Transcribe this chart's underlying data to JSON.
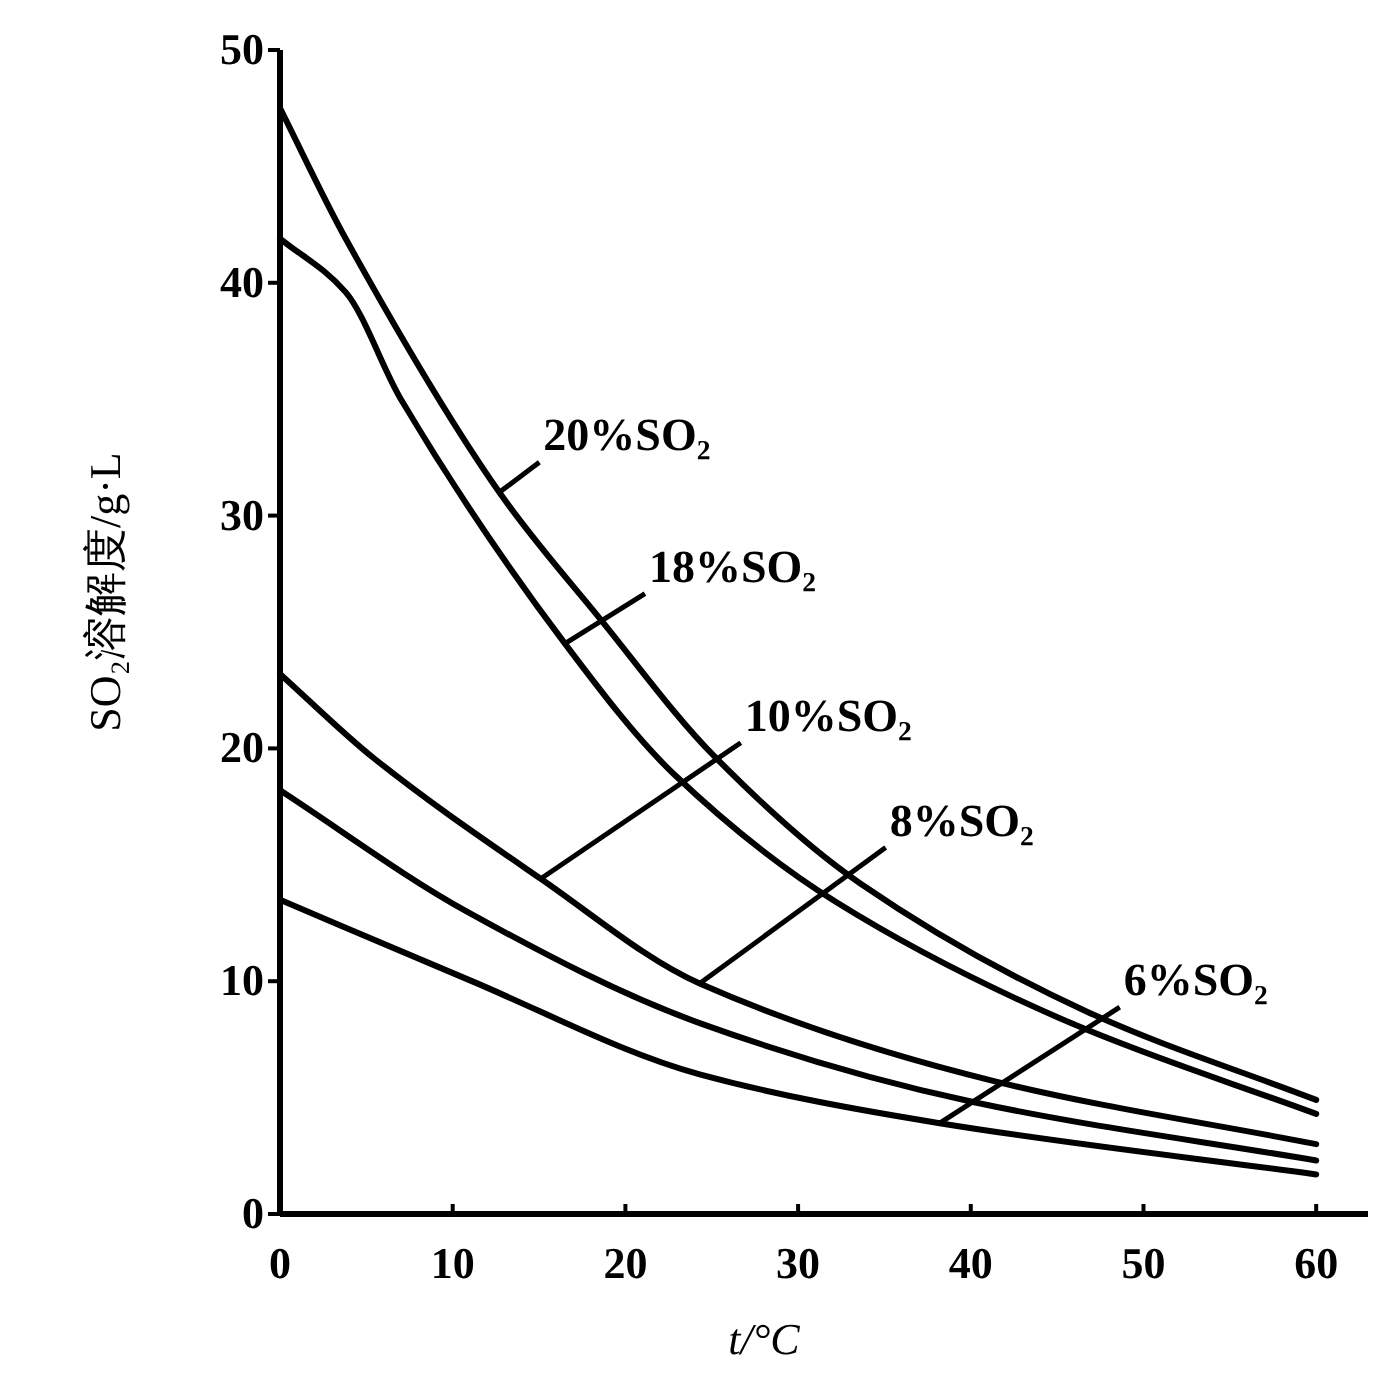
{
  "chart_data": {
    "type": "line",
    "xlabel": "t/°C",
    "ylabel": "SO₂溶解度/g·L",
    "xlim": [
      0,
      63
    ],
    "ylim": [
      0,
      50
    ],
    "xticks": [
      0,
      10,
      20,
      30,
      40,
      50,
      60
    ],
    "yticks": [
      0,
      10,
      20,
      30,
      40,
      50
    ],
    "grid": false,
    "marker": "none",
    "line_style": "solid",
    "series": [
      {
        "color": "#000000",
        "x": [
          0,
          3.8,
          12.7,
          18.5,
          25.1,
          33.6,
          46.7,
          60
        ],
        "values": [
          47.5,
          41.9,
          31.0,
          25.6,
          19.7,
          14.2,
          8.7,
          4.9
        ]
      },
      {
        "color": "#000000",
        "x": [
          0,
          3.8,
          7,
          16.5,
          22.8,
          32.2,
          45.8,
          60
        ],
        "values": [
          41.9,
          39.6,
          35.0,
          24.5,
          18.9,
          13.4,
          8.2,
          4.3
        ]
      },
      {
        "color": "#000000",
        "x": [
          0,
          5.4,
          15.1,
          24.3,
          41.4,
          60
        ],
        "values": [
          23.2,
          19.6,
          14.4,
          9.9,
          5.7,
          3.0
        ]
      },
      {
        "color": "#000000",
        "x": [
          0,
          10.8,
          24.3,
          40.2,
          60
        ],
        "values": [
          18.2,
          13.0,
          8.2,
          4.8,
          2.3
        ]
      },
      {
        "color": "#000000",
        "x": [
          0,
          10.8,
          24.3,
          38.2,
          60
        ],
        "values": [
          13.5,
          10.1,
          6.0,
          3.9,
          1.7
        ]
      }
    ],
    "annotations": [
      {
        "text": "20%SO₂",
        "x": 12.7,
        "y": 31.0
      },
      {
        "text": "18%SO₂",
        "x": 16.5,
        "y": 24.5
      },
      {
        "text": "10%SO₂",
        "x": 15.1,
        "y": 14.4
      },
      {
        "text": "8%SO₂",
        "x": 24.3,
        "y": 9.9
      },
      {
        "text": "6%SO₂",
        "x": 38.2,
        "y": 3.9
      }
    ]
  }
}
